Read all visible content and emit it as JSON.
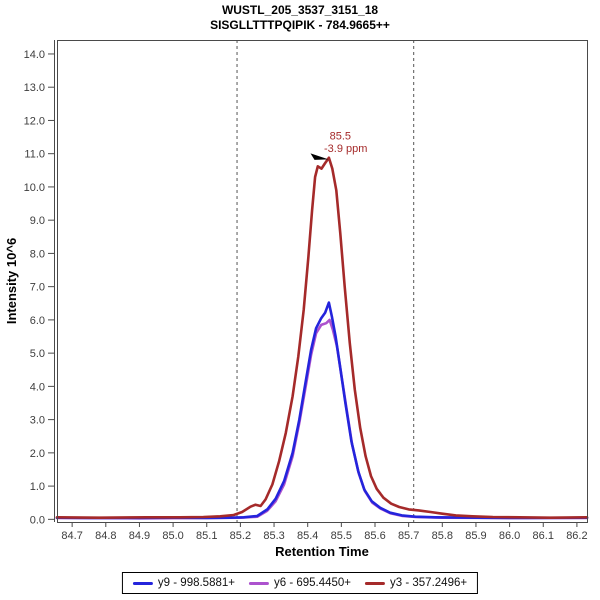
{
  "chart_data": {
    "type": "line",
    "title_line1": "WUSTL_205_3537_3151_18",
    "title_line2": "SISGLLTTTPQIPIK - 784.9665++",
    "xlabel": "Retention Time",
    "ylabel": "Intensity 10^6",
    "xlim": [
      84.655,
      86.23
    ],
    "ylim": [
      -0.08,
      14.42
    ],
    "grid": false,
    "legend_position": "bottom",
    "xticks": [
      {
        "v": 84.7,
        "label": "84.7"
      },
      {
        "v": 84.8,
        "label": "84.8"
      },
      {
        "v": 84.9,
        "label": "84.9"
      },
      {
        "v": 85.0,
        "label": "85.0"
      },
      {
        "v": 85.1,
        "label": "85.1"
      },
      {
        "v": 85.2,
        "label": "85.2"
      },
      {
        "v": 85.3,
        "label": "85.3"
      },
      {
        "v": 85.4,
        "label": "85.4"
      },
      {
        "v": 85.5,
        "label": "85.5"
      },
      {
        "v": 85.6,
        "label": "85.6"
      },
      {
        "v": 85.7,
        "label": "85.7"
      },
      {
        "v": 85.8,
        "label": "85.8"
      },
      {
        "v": 85.9,
        "label": "85.9"
      },
      {
        "v": 86.0,
        "label": "86.0"
      },
      {
        "v": 86.1,
        "label": "86.1"
      },
      {
        "v": 86.2,
        "label": "86.2"
      }
    ],
    "yticks": [
      {
        "v": 0,
        "label": "0.0"
      },
      {
        "v": 1,
        "label": "1.0"
      },
      {
        "v": 2,
        "label": "2.0"
      },
      {
        "v": 3,
        "label": "3.0"
      },
      {
        "v": 4,
        "label": "4.0"
      },
      {
        "v": 5,
        "label": "5.0"
      },
      {
        "v": 6,
        "label": "6.0"
      },
      {
        "v": 7,
        "label": "7.0"
      },
      {
        "v": 8,
        "label": "8.0"
      },
      {
        "v": 9,
        "label": "9.0"
      },
      {
        "v": 10,
        "label": "10.0"
      },
      {
        "v": 11,
        "label": "11.0"
      },
      {
        "v": 12,
        "label": "12.0"
      },
      {
        "v": 13,
        "label": "13.0"
      },
      {
        "v": 14,
        "label": "14.0"
      }
    ],
    "boundaries": [
      85.19,
      85.715
    ],
    "annotation": {
      "time": "85.5",
      "ppm": "-3.9 ppm",
      "x": 85.463,
      "y": 10.88
    },
    "series": [
      {
        "name": "y9 - 998.5881+",
        "color": "#2424DC",
        "z": 2,
        "points": [
          [
            84.655,
            0.05
          ],
          [
            84.75,
            0.04
          ],
          [
            84.9,
            0.04
          ],
          [
            85.0,
            0.05
          ],
          [
            85.1,
            0.04
          ],
          [
            85.17,
            0.05
          ],
          [
            85.21,
            0.06
          ],
          [
            85.25,
            0.1
          ],
          [
            85.28,
            0.3
          ],
          [
            85.305,
            0.62
          ],
          [
            85.33,
            1.15
          ],
          [
            85.355,
            2.0
          ],
          [
            85.375,
            3.0
          ],
          [
            85.395,
            4.2
          ],
          [
            85.41,
            5.1
          ],
          [
            85.425,
            5.75
          ],
          [
            85.44,
            6.05
          ],
          [
            85.452,
            6.22
          ],
          [
            85.463,
            6.52
          ],
          [
            85.472,
            6.1
          ],
          [
            85.483,
            5.5
          ],
          [
            85.497,
            4.55
          ],
          [
            85.512,
            3.5
          ],
          [
            85.53,
            2.35
          ],
          [
            85.55,
            1.45
          ],
          [
            85.568,
            0.9
          ],
          [
            85.59,
            0.55
          ],
          [
            85.615,
            0.35
          ],
          [
            85.645,
            0.2
          ],
          [
            85.68,
            0.12
          ],
          [
            85.72,
            0.08
          ],
          [
            85.78,
            0.06
          ],
          [
            85.9,
            0.05
          ],
          [
            86.05,
            0.04
          ],
          [
            86.23,
            0.05
          ]
        ]
      },
      {
        "name": "y6 - 695.4450+",
        "color": "#AC52CE",
        "z": 1,
        "points": [
          [
            84.655,
            0.04
          ],
          [
            84.9,
            0.03
          ],
          [
            85.1,
            0.04
          ],
          [
            85.2,
            0.05
          ],
          [
            85.25,
            0.08
          ],
          [
            85.28,
            0.26
          ],
          [
            85.305,
            0.55
          ],
          [
            85.33,
            1.05
          ],
          [
            85.355,
            1.9
          ],
          [
            85.375,
            2.9
          ],
          [
            85.395,
            4.05
          ],
          [
            85.41,
            4.95
          ],
          [
            85.425,
            5.6
          ],
          [
            85.44,
            5.85
          ],
          [
            85.455,
            5.9
          ],
          [
            85.465,
            6.0
          ],
          [
            85.475,
            5.7
          ],
          [
            85.487,
            5.2
          ],
          [
            85.5,
            4.35
          ],
          [
            85.515,
            3.35
          ],
          [
            85.532,
            2.25
          ],
          [
            85.552,
            1.38
          ],
          [
            85.57,
            0.85
          ],
          [
            85.592,
            0.5
          ],
          [
            85.617,
            0.32
          ],
          [
            85.647,
            0.18
          ],
          [
            85.682,
            0.1
          ],
          [
            85.72,
            0.07
          ],
          [
            85.8,
            0.05
          ],
          [
            86.0,
            0.04
          ],
          [
            86.23,
            0.04
          ]
        ]
      },
      {
        "name": "y3 - 357.2496+",
        "color": "#A52A2A",
        "z": 3,
        "points": [
          [
            84.655,
            0.06
          ],
          [
            84.78,
            0.05
          ],
          [
            84.92,
            0.06
          ],
          [
            85.02,
            0.06
          ],
          [
            85.09,
            0.07
          ],
          [
            85.14,
            0.09
          ],
          [
            85.18,
            0.13
          ],
          [
            85.205,
            0.22
          ],
          [
            85.23,
            0.38
          ],
          [
            85.245,
            0.44
          ],
          [
            85.26,
            0.4
          ],
          [
            85.275,
            0.6
          ],
          [
            85.295,
            1.05
          ],
          [
            85.315,
            1.75
          ],
          [
            85.335,
            2.6
          ],
          [
            85.355,
            3.7
          ],
          [
            85.372,
            4.9
          ],
          [
            85.388,
            6.3
          ],
          [
            85.402,
            7.9
          ],
          [
            85.413,
            9.3
          ],
          [
            85.422,
            10.3
          ],
          [
            85.43,
            10.62
          ],
          [
            85.441,
            10.55
          ],
          [
            85.452,
            10.72
          ],
          [
            85.463,
            10.88
          ],
          [
            85.473,
            10.55
          ],
          [
            85.485,
            9.9
          ],
          [
            85.497,
            8.6
          ],
          [
            85.51,
            7.0
          ],
          [
            85.525,
            5.3
          ],
          [
            85.54,
            3.9
          ],
          [
            85.556,
            2.75
          ],
          [
            85.572,
            1.9
          ],
          [
            85.588,
            1.3
          ],
          [
            85.605,
            0.92
          ],
          [
            85.625,
            0.65
          ],
          [
            85.648,
            0.47
          ],
          [
            85.672,
            0.37
          ],
          [
            85.7,
            0.3
          ],
          [
            85.73,
            0.27
          ],
          [
            85.765,
            0.22
          ],
          [
            85.8,
            0.17
          ],
          [
            85.84,
            0.12
          ],
          [
            85.89,
            0.09
          ],
          [
            85.95,
            0.07
          ],
          [
            86.03,
            0.06
          ],
          [
            86.12,
            0.05
          ],
          [
            86.23,
            0.06
          ]
        ]
      }
    ]
  },
  "colors": {
    "frame": "#4a4a4a",
    "boundary": "#555555",
    "tick_text": "#3d3d3d",
    "annotation": "#A52A2A"
  }
}
